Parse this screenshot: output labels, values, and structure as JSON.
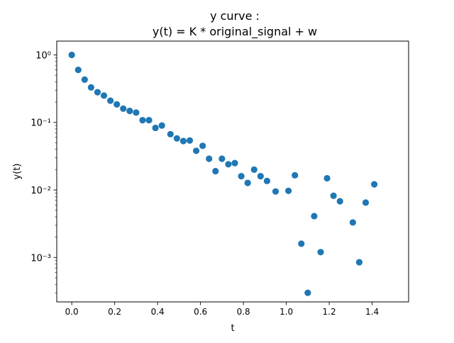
{
  "chart_data": {
    "type": "scatter",
    "title": "y curve :",
    "subtitle": "y(t) = K * original_signal + w",
    "xlabel": "t",
    "ylabel": "y(t)",
    "xlim": [
      -0.07,
      1.57
    ],
    "ylim": [
      0.00022,
      1.6
    ],
    "yscale": "log",
    "grid": false,
    "marker_color": "#1f77b4",
    "x_ticks": [
      0.0,
      0.2,
      0.4,
      0.6,
      0.8,
      1.0,
      1.2,
      1.4
    ],
    "x_tick_labels": [
      "0.0",
      "0.2",
      "0.4",
      "0.6",
      "0.8",
      "1.0",
      "1.2",
      "1.4"
    ],
    "y_ticks": [
      0.001,
      0.01,
      0.1,
      1
    ],
    "y_tick_labels": [
      "10⁻³",
      "10⁻²",
      "10⁻¹",
      "10⁰"
    ],
    "x": [
      0.0,
      0.03,
      0.06,
      0.09,
      0.12,
      0.15,
      0.18,
      0.21,
      0.24,
      0.27,
      0.3,
      0.33,
      0.36,
      0.39,
      0.42,
      0.46,
      0.49,
      0.52,
      0.55,
      0.58,
      0.61,
      0.64,
      0.67,
      0.7,
      0.73,
      0.76,
      0.79,
      0.82,
      0.85,
      0.88,
      0.91,
      0.95,
      1.01,
      1.04,
      1.07,
      1.1,
      1.13,
      1.16,
      1.19,
      1.22,
      1.25,
      1.31,
      1.34,
      1.37,
      1.41
    ],
    "y": [
      1.0,
      0.6,
      0.43,
      0.33,
      0.28,
      0.25,
      0.21,
      0.185,
      0.16,
      0.148,
      0.14,
      0.108,
      0.108,
      0.083,
      0.09,
      0.067,
      0.058,
      0.053,
      0.054,
      0.038,
      0.045,
      0.029,
      0.019,
      0.029,
      0.024,
      0.025,
      0.016,
      0.0127,
      0.02,
      0.016,
      0.0136,
      0.0095,
      0.0097,
      0.0165,
      0.0016,
      0.0003,
      0.0041,
      0.0012,
      0.0149,
      0.0082,
      0.0068,
      0.0033,
      0.00085,
      0.0065,
      0.0121
    ]
  }
}
